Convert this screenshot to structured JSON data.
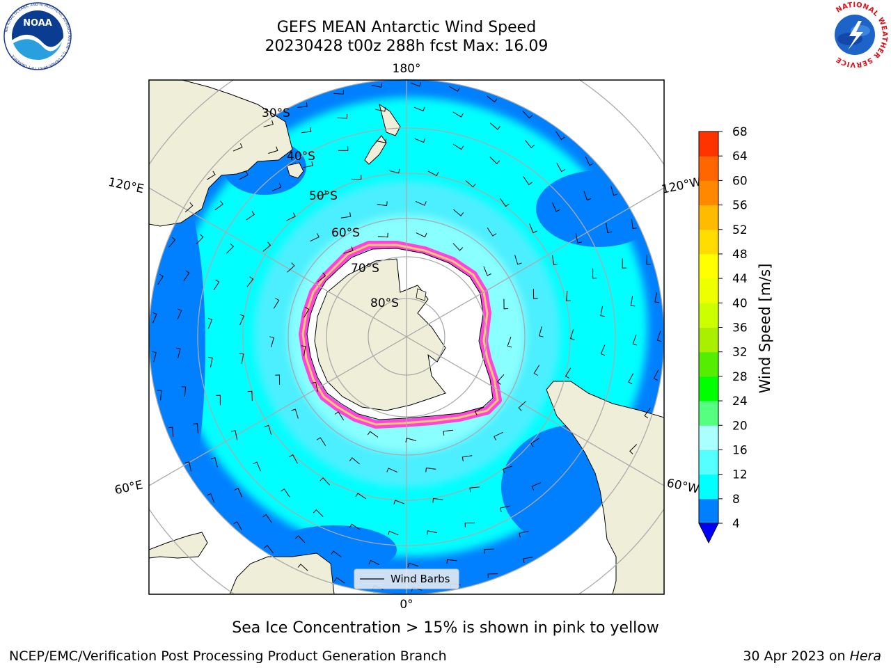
{
  "header": {
    "title_line1": "GEFS MEAN Antarctic Wind Speed",
    "title_line2": "20230428 t00z 288h fcst   Max: 16.09"
  },
  "logos": {
    "noaa_text": "NOAA",
    "noaa_ring_text": "NATIONAL OCEANIC AND ATMOSPHERIC ADMINISTRATION · U.S. DEPARTMENT OF COMMERCE",
    "nws_ring_text": "NATIONAL WEATHER SERVICE"
  },
  "map": {
    "projection": "south-polar-stereographic",
    "longitude_labels": {
      "top": "180°",
      "bottom": "0°",
      "upper_left": "120°E",
      "upper_right": "120°W",
      "lower_left": "60°E",
      "lower_right": "60°W"
    },
    "latitude_labels": [
      "30°S",
      "40°S",
      "50°S",
      "60°S",
      "70°S",
      "80°S"
    ],
    "legend_label": "Wind Barbs",
    "colors": {
      "land": "#efeed9",
      "ice_shelf": "#ffffff",
      "sea_ice": "#ff44dd",
      "wind_4_8": "#0080ff",
      "wind_8_12": "#00ffff",
      "wind_12_16": "#55eeff",
      "wind_16_20": "#99ffff"
    }
  },
  "colorbar": {
    "label": "Wind Speed [m/s]",
    "ticks": [
      "4",
      "8",
      "12",
      "16",
      "20",
      "24",
      "28",
      "32",
      "36",
      "40",
      "44",
      "48",
      "52",
      "56",
      "60",
      "64",
      "68"
    ],
    "under_color": "#0000ff",
    "colors": [
      "#0080ff",
      "#00ffff",
      "#55ffff",
      "#aaffff",
      "#55ff80",
      "#00ff00",
      "#55ee00",
      "#aaee00",
      "#ccff00",
      "#eeff00",
      "#ffff00",
      "#ffdd00",
      "#ffbb00",
      "#ff8800",
      "#ff6600",
      "#ff3300",
      "#ff0000"
    ]
  },
  "caption": "Sea Ice Concentration > 15% is shown in pink to yellow",
  "footer": {
    "left": "NCEP/EMC/Verification Post Processing Product Generation Branch",
    "right_prefix": "30 Apr 2023 on ",
    "right_machine": "Hera"
  }
}
